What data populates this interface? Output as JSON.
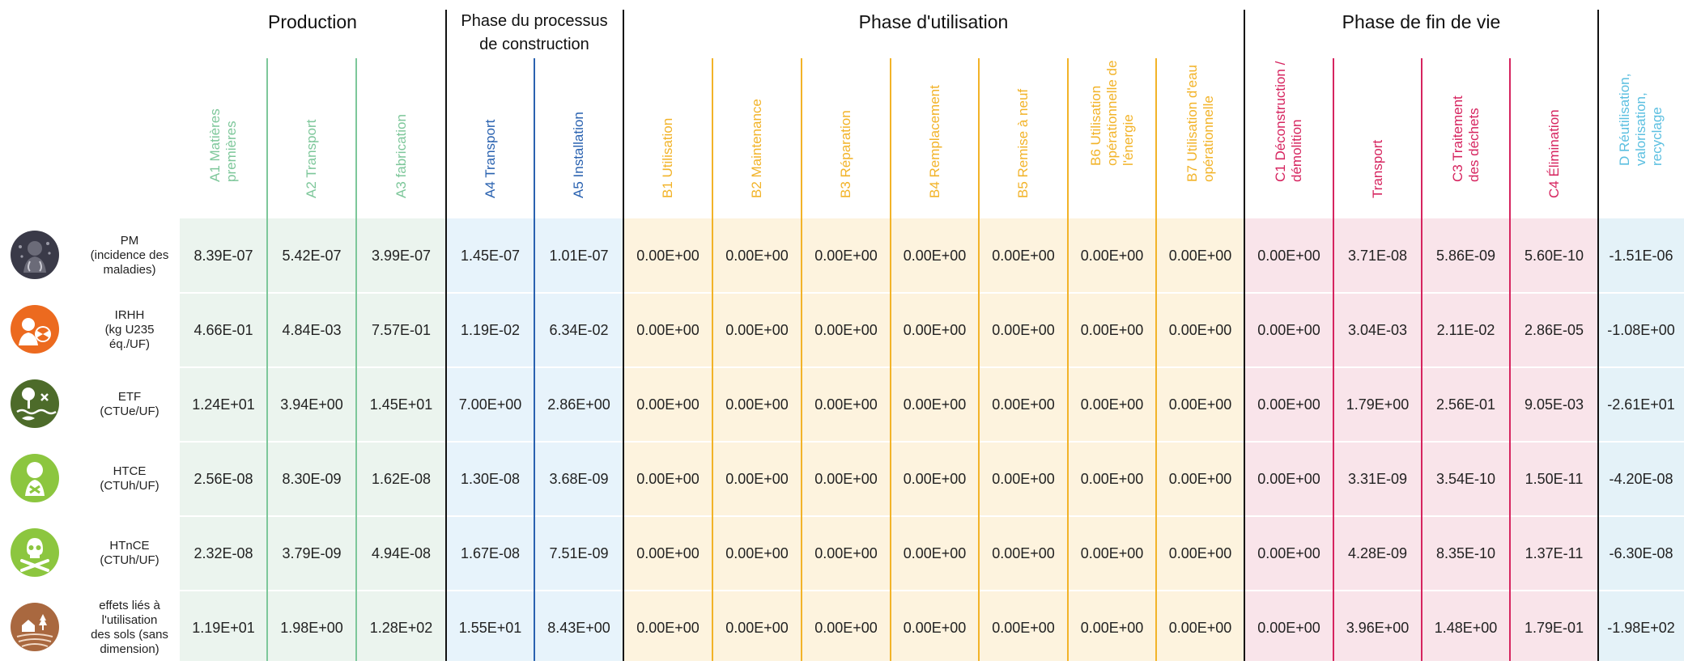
{
  "colors": {
    "production": "#7dc79a",
    "production_bg": "#ebf4ee",
    "construction": "#2a62b0",
    "construction_bg": "#e7f3fb",
    "utilisation": "#f2b328",
    "utilisation_bg": "#fdf3de",
    "fin_de_vie": "#d6245f",
    "fin_de_vie_bg": "#f9e4ea",
    "reuse": "#5bbfe0",
    "reuse_bg": "#e4f2f8"
  },
  "phases": {
    "production": "Production",
    "construction": "Phase du processus\nde construction",
    "utilisation": "Phase d'utilisation",
    "fin_de_vie": "Phase de fin de vie"
  },
  "columns": [
    {
      "label": "A1 Matières\npremières"
    },
    {
      "label": "A2 Transport"
    },
    {
      "label": "A3 fabrication"
    },
    {
      "label": "A4 Transport"
    },
    {
      "label": "A5 Installation"
    },
    {
      "label": "B1 Utilisation"
    },
    {
      "label": "B2 Maintenance"
    },
    {
      "label": "B3 Réparation"
    },
    {
      "label": "B4 Remplacement"
    },
    {
      "label": "B5 Remise à neuf"
    },
    {
      "label": "B6 Utilisation\nopérationnelle de\nl'énergie"
    },
    {
      "label": "B7 Utilisation d'eau\nopérationnelle"
    },
    {
      "label": "C1 Déconstruction /\ndémolition"
    },
    {
      "label": "Transport"
    },
    {
      "label": "C3 Traitement\ndes déchets"
    },
    {
      "label": "C4 Élimination"
    },
    {
      "label": "D Réutilisation,\nvalorisation,\nrecyclage"
    }
  ],
  "rows": [
    {
      "icon": "particulate-matter-icon",
      "label": "PM\n(incidence des\nmaladies)",
      "values": [
        "8.39E-07",
        "5.42E-07",
        "3.99E-07",
        "1.45E-07",
        "1.01E-07",
        "0.00E+00",
        "0.00E+00",
        "0.00E+00",
        "0.00E+00",
        "0.00E+00",
        "0.00E+00",
        "0.00E+00",
        "0.00E+00",
        "3.71E-08",
        "5.86E-09",
        "5.60E-10",
        "-1.51E-06"
      ]
    },
    {
      "icon": "radiation-icon",
      "label": "IRHH\n(kg U235\néq./UF)",
      "values": [
        "4.66E-01",
        "4.84E-03",
        "7.57E-01",
        "1.19E-02",
        "6.34E-02",
        "0.00E+00",
        "0.00E+00",
        "0.00E+00",
        "0.00E+00",
        "0.00E+00",
        "0.00E+00",
        "0.00E+00",
        "0.00E+00",
        "3.04E-03",
        "2.11E-02",
        "2.86E-05",
        "-1.08E+00"
      ]
    },
    {
      "icon": "ecotoxicity-icon",
      "label": "ETF\n(CTUe/UF)",
      "values": [
        "1.24E+01",
        "3.94E+00",
        "1.45E+01",
        "7.00E+00",
        "2.86E+00",
        "0.00E+00",
        "0.00E+00",
        "0.00E+00",
        "0.00E+00",
        "0.00E+00",
        "0.00E+00",
        "0.00E+00",
        "0.00E+00",
        "1.79E+00",
        "2.56E-01",
        "9.05E-03",
        "-2.61E+01"
      ]
    },
    {
      "icon": "human-toxicity-cancer-icon",
      "label": "HTCE\n(CTUh/UF)",
      "values": [
        "2.56E-08",
        "8.30E-09",
        "1.62E-08",
        "1.30E-08",
        "3.68E-09",
        "0.00E+00",
        "0.00E+00",
        "0.00E+00",
        "0.00E+00",
        "0.00E+00",
        "0.00E+00",
        "0.00E+00",
        "0.00E+00",
        "3.31E-09",
        "3.54E-10",
        "1.50E-11",
        "-4.20E-08"
      ]
    },
    {
      "icon": "skull-crossbones-icon",
      "label": "HTnCE\n(CTUh/UF)",
      "values": [
        "2.32E-08",
        "3.79E-09",
        "4.94E-08",
        "1.67E-08",
        "7.51E-09",
        "0.00E+00",
        "0.00E+00",
        "0.00E+00",
        "0.00E+00",
        "0.00E+00",
        "0.00E+00",
        "0.00E+00",
        "0.00E+00",
        "4.28E-09",
        "8.35E-10",
        "1.37E-11",
        "-6.30E-08"
      ]
    },
    {
      "icon": "land-use-icon",
      "label": "effets liés à\nl'utilisation\ndes sols (sans\ndimension)",
      "values": [
        "1.19E+01",
        "1.98E+00",
        "1.28E+02",
        "1.55E+01",
        "8.43E+00",
        "0.00E+00",
        "0.00E+00",
        "0.00E+00",
        "0.00E+00",
        "0.00E+00",
        "0.00E+00",
        "0.00E+00",
        "0.00E+00",
        "3.96E+00",
        "1.48E+00",
        "1.79E-01",
        "-1.98E+02"
      ]
    }
  ]
}
